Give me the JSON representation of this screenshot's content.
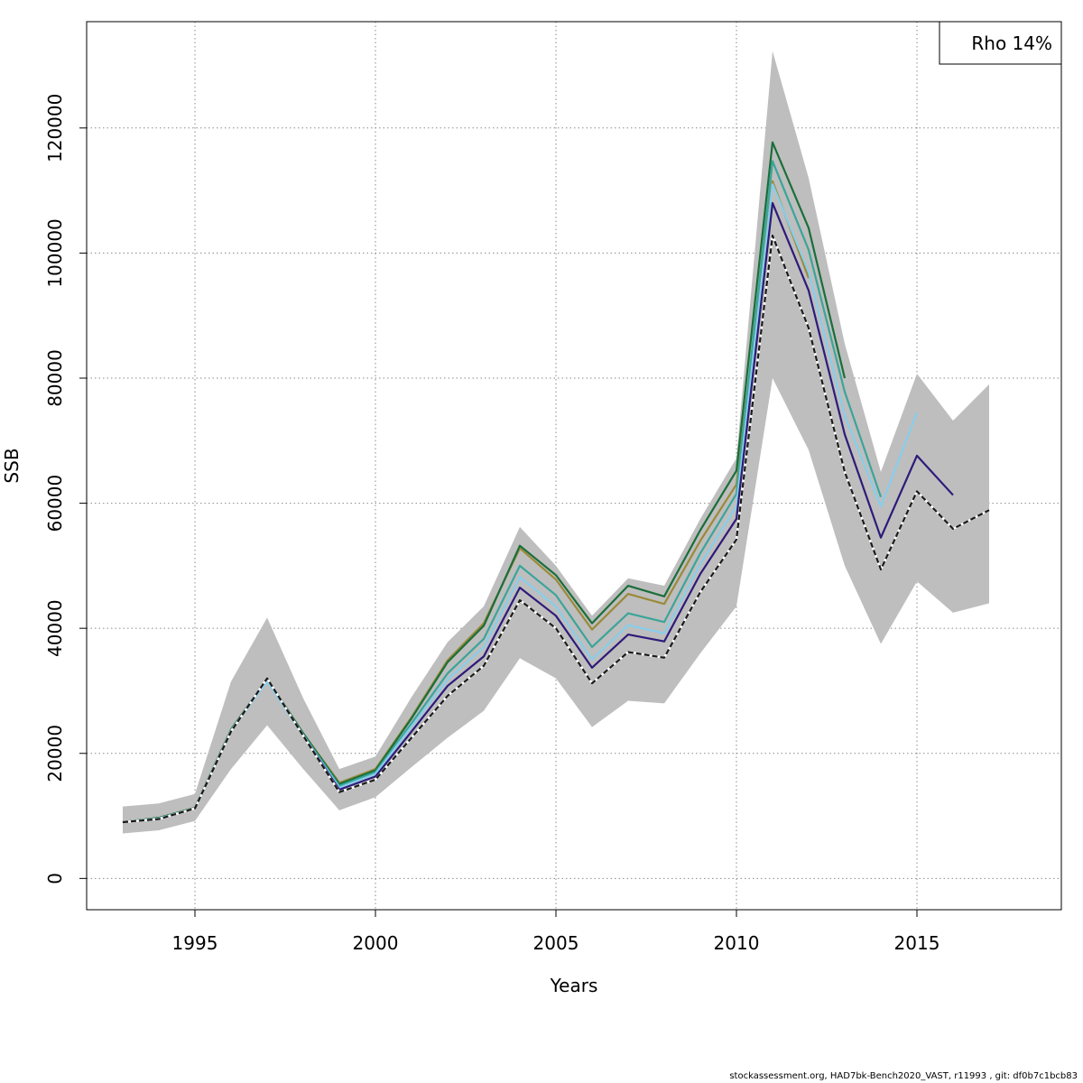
{
  "chart_data": {
    "type": "line",
    "xlabel": "Years",
    "ylabel": "SSB",
    "xlim": [
      1992,
      2019
    ],
    "ylim": [
      -5000,
      137000
    ],
    "x_ticks": [
      1995,
      2000,
      2005,
      2010,
      2015
    ],
    "y_ticks": [
      0,
      20000,
      40000,
      60000,
      80000,
      100000,
      120000
    ],
    "grid": true,
    "legend": {
      "position": "top-right",
      "text": "Rho 14%"
    },
    "confidence_band": {
      "color": "#bebebe",
      "x": [
        1993,
        1994,
        1995,
        1996,
        1997,
        1998,
        1999,
        2000,
        2001,
        2002,
        2003,
        2004,
        2005,
        2006,
        2007,
        2008,
        2009,
        2010,
        2011,
        2012,
        2013,
        2014,
        2015,
        2016,
        2017
      ],
      "lower": [
        7200,
        7700,
        9200,
        17500,
        24500,
        17500,
        10900,
        13000,
        17800,
        22500,
        26800,
        35200,
        32000,
        24200,
        28400,
        28000,
        36000,
        43500,
        80000,
        68500,
        50000,
        37500,
        47500,
        42500,
        44000
      ],
      "upper": [
        11500,
        12000,
        13500,
        31500,
        41700,
        28800,
        17500,
        19500,
        29000,
        37800,
        43500,
        56200,
        50000,
        42000,
        48000,
        46800,
        57500,
        67200,
        132300,
        112000,
        85500,
        65000,
        80700,
        73200,
        79000
      ]
    },
    "series": [
      {
        "color": "#1a1a1a",
        "dashed": true,
        "x": [
          1993,
          1994,
          1995,
          1996,
          1997,
          1998,
          1999,
          2000,
          2001,
          2002,
          2003,
          2004,
          2005,
          2006,
          2007,
          2008,
          2009,
          2010,
          2011,
          2012,
          2013,
          2014,
          2015,
          2016,
          2017
        ],
        "values": [
          9000,
          9500,
          11200,
          23500,
          32000,
          22800,
          13800,
          15800,
          22500,
          29200,
          34000,
          44500,
          40000,
          31200,
          36200,
          35300,
          45800,
          54200,
          102800,
          88000,
          65000,
          49400,
          61900,
          55900,
          58900
        ]
      },
      {
        "color": "#2e1a7a",
        "dashed": false,
        "x": [
          1993,
          1994,
          1995,
          1996,
          1997,
          1998,
          1999,
          2000,
          2001,
          2002,
          2003,
          2004,
          2005,
          2006,
          2007,
          2008,
          2009,
          2010,
          2011,
          2012,
          2013,
          2014,
          2015,
          2016
        ],
        "values": [
          9000,
          9500,
          11200,
          23500,
          32000,
          22800,
          14200,
          16300,
          23500,
          30800,
          35500,
          46500,
          42000,
          33700,
          39000,
          37900,
          48700,
          57500,
          108000,
          94000,
          71000,
          54500,
          67600,
          61300
        ]
      },
      {
        "color": "#87ceeb",
        "dashed": false,
        "x": [
          1993,
          1994,
          1995,
          1996,
          1997,
          1998,
          1999,
          2000,
          2001,
          2002,
          2003,
          2004,
          2005,
          2006,
          2007,
          2008,
          2009,
          2010,
          2011,
          2012,
          2013,
          2014,
          2015
        ],
        "values": [
          9000,
          9600,
          11200,
          23600,
          31500,
          22800,
          14500,
          16700,
          24300,
          31800,
          37000,
          48200,
          43500,
          35000,
          40500,
          39200,
          50300,
          59500,
          111000,
          97000,
          74000,
          59500,
          74500
        ]
      },
      {
        "color": "#3aa59a",
        "dashed": false,
        "x": [
          1993,
          1994,
          1995,
          1996,
          1997,
          1998,
          1999,
          2000,
          2001,
          2002,
          2003,
          2004,
          2005,
          2006,
          2007,
          2008,
          2009,
          2010,
          2011,
          2012,
          2013,
          2014
        ],
        "values": [
          9000,
          9600,
          11200,
          23700,
          31700,
          23000,
          14800,
          17000,
          24800,
          32800,
          38300,
          50000,
          45300,
          37000,
          42400,
          41000,
          52000,
          61500,
          114700,
          100500,
          77800,
          61000
        ]
      },
      {
        "color": "#1a6e3a",
        "dashed": false,
        "x": [
          1993,
          1994,
          1995,
          1996,
          1997,
          1998,
          1999,
          2000,
          2001,
          2002,
          2003,
          2004,
          2005,
          2006,
          2007,
          2008,
          2009,
          2010,
          2011,
          2012,
          2013
        ],
        "values": [
          9000,
          9700,
          11300,
          23800,
          31900,
          23200,
          15100,
          17300,
          25600,
          34600,
          40400,
          53200,
          48500,
          40800,
          46800,
          45100,
          55700,
          65200,
          117700,
          104000,
          80000
        ]
      },
      {
        "color": "#9a8a3a",
        "dashed": false,
        "x": [
          1993,
          1994,
          1995,
          1996,
          1997,
          1998,
          1999,
          2000,
          2001,
          2002,
          2003,
          2004,
          2005,
          2006,
          2007,
          2008,
          2009,
          2010,
          2011,
          2012
        ],
        "values": [
          9000,
          9700,
          11300,
          23800,
          31900,
          23200,
          15300,
          17500,
          25800,
          34900,
          40800,
          52800,
          47800,
          39800,
          45500,
          43900,
          54000,
          63000,
          111500,
          96000
        ]
      }
    ]
  },
  "footer": "stockassessment.org, HAD7bk-Bench2020_VAST, r11993 , git: df0b7c1bcb83"
}
